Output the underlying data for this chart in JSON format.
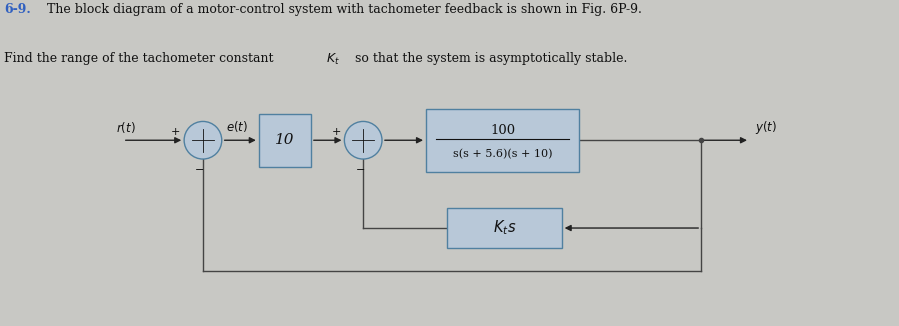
{
  "title_line1_bold": "6-9.",
  "title_line1_rest": "  The block diagram of a motor-control system with tachometer feedback is shown in Fig. 6P-9.",
  "title_line2": "Find the range of the tachometer constant ",
  "title_line2_K": "K",
  "title_line2_rest": ", so that the system is asymptotically stable.",
  "bg_color": "#c8c8c4",
  "box_fill": "#b8c8d8",
  "box_edge": "#5080a0",
  "figsize": [
    8.99,
    3.26
  ],
  "dpi": 100,
  "arrow_color": "#222222",
  "text_color": "#111111",
  "line_color": "#444444"
}
